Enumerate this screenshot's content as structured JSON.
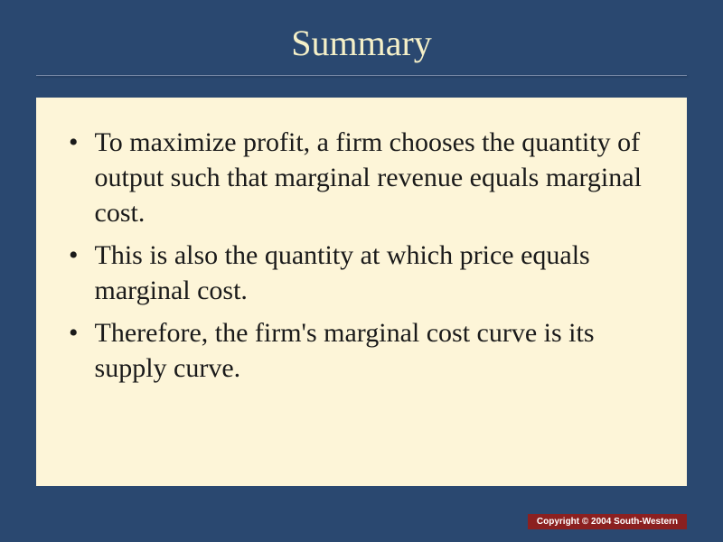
{
  "slide": {
    "title": "Summary",
    "bullets": [
      "To maximize profit, a firm chooses the quantity of output such that marginal revenue equals marginal cost.",
      "This is also the quantity at which price equals marginal cost.",
      "Therefore, the firm's marginal cost curve is its supply curve."
    ],
    "copyright": "Copyright © 2004  South-Western"
  },
  "styling": {
    "background_color": "#2a4870",
    "content_background": "#fdf5d8",
    "title_color": "#f5f0c8",
    "title_fontsize": 40,
    "bullet_fontsize": 30,
    "bullet_color": "#1a1a1a",
    "underline_color": "#7a8ba8",
    "copyright_bg": "#8b2020",
    "copyright_color": "#ffffff",
    "copyright_fontsize": 10,
    "font_family": "Georgia, Times New Roman, serif"
  }
}
